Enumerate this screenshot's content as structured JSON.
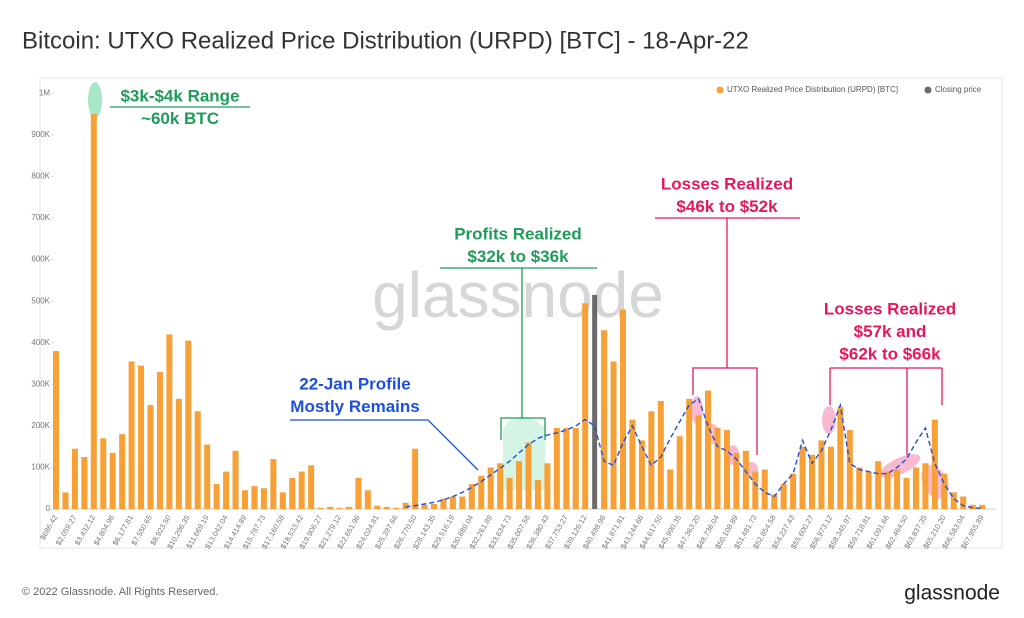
{
  "chart_data": {
    "type": "bar",
    "title": "Bitcoin: UTXO Realized Price Distribution (URPD) [BTC] - 18-Apr-22",
    "watermark": "glassnode",
    "footer": "© 2022 Glassnode. All Rights Reserved.",
    "logo": "glassnode",
    "categories": [
      "$686.42",
      null,
      "$2,059.27",
      null,
      "$3,432.12",
      null,
      "$4,804.96",
      null,
      "$6,177.81",
      null,
      "$7,550.65",
      null,
      "$8,923.50",
      null,
      "$10,296.35",
      null,
      "$11,669.19",
      null,
      "$13,042.04",
      null,
      "$14,414.89",
      null,
      "$15,787.73",
      null,
      "$17,160.58",
      null,
      "$18,533.42",
      null,
      "$19,906.27",
      null,
      "$21,279.12",
      null,
      "$22,651.96",
      null,
      "$24,024.81",
      null,
      "$25,397.66",
      null,
      "$26,770.50",
      null,
      "$28,143.35",
      null,
      "$29,516.19",
      null,
      "$30,889.04",
      null,
      "$32,261.89",
      null,
      "$33,634.73",
      null,
      "$35,007.58",
      null,
      "$36,380.43",
      null,
      "$37,753.27",
      null,
      "$39,126.12",
      null,
      "$40,498.96",
      null,
      "$41,871.81",
      null,
      "$43,244.66",
      null,
      "$44,617.50",
      null,
      "$45,990.35",
      null,
      "$47,363.20",
      null,
      "$48,736.04",
      null,
      "$50,108.89",
      null,
      "$51,481.73",
      null,
      "$52,854.58",
      null,
      "$54,227.43",
      null,
      "$55,600.27",
      null,
      "$56,973.12",
      null,
      "$58,345.97",
      null,
      "$59,718.81",
      null,
      "$61,091.66",
      null,
      "$62,464.50",
      null,
      "$63,837.35",
      null,
      "$65,210.20",
      null,
      "$66,583.04",
      null,
      "$67,955.89"
    ],
    "series": [
      {
        "name": "UTXO Realized Price Distribution (URPD) [BTC]",
        "color": "#f7a035",
        "values": [
          380000,
          40000,
          145000,
          125000,
          950000,
          170000,
          135000,
          180000,
          355000,
          345000,
          250000,
          330000,
          420000,
          265000,
          405000,
          235000,
          155000,
          60000,
          90000,
          140000,
          45000,
          55000,
          50000,
          120000,
          40000,
          75000,
          90000,
          105000,
          3000,
          5000,
          3000,
          5000,
          75000,
          45000,
          8000,
          5000,
          3000,
          15000,
          145000,
          10000,
          12000,
          25000,
          30000,
          30000,
          60000,
          80000,
          100000,
          110000,
          75000,
          115000,
          160000,
          70000,
          110000,
          195000,
          195000,
          195000,
          495000,
          0,
          430000,
          355000,
          480000,
          215000,
          165000,
          235000,
          260000,
          95000,
          175000,
          265000,
          225000,
          285000,
          195000,
          190000,
          135000,
          140000,
          90000,
          95000,
          35000,
          60000,
          85000,
          150000,
          130000,
          165000,
          150000,
          245000,
          190000,
          100000,
          90000,
          115000,
          90000,
          95000,
          75000,
          100000,
          110000,
          215000,
          85000,
          40000,
          30000,
          10000,
          10000
        ]
      },
      {
        "name": "Closing price",
        "color": "#6b6b6b",
        "values": [
          null,
          null,
          null,
          null,
          null,
          null,
          null,
          null,
          null,
          null,
          null,
          null,
          null,
          null,
          null,
          null,
          null,
          null,
          null,
          null,
          null,
          null,
          null,
          null,
          null,
          null,
          null,
          null,
          null,
          null,
          null,
          null,
          null,
          null,
          null,
          null,
          null,
          null,
          null,
          null,
          null,
          null,
          null,
          null,
          null,
          null,
          null,
          null,
          null,
          null,
          null,
          null,
          null,
          null,
          null,
          null,
          null,
          515000,
          null,
          null,
          null,
          null,
          null,
          null,
          null,
          null,
          null,
          null,
          null,
          null,
          null,
          null,
          null,
          null,
          null,
          null,
          null,
          null,
          null,
          null,
          null,
          null,
          null,
          null,
          null,
          null,
          null,
          null,
          null,
          null,
          null,
          null,
          null,
          null,
          null,
          null,
          null,
          null,
          null
        ]
      }
    ],
    "profile_line": {
      "color": "#1f4fe0",
      "values": [
        null,
        null,
        null,
        null,
        null,
        null,
        null,
        null,
        null,
        null,
        null,
        null,
        null,
        null,
        null,
        null,
        null,
        null,
        null,
        null,
        null,
        null,
        null,
        null,
        null,
        null,
        null,
        null,
        null,
        null,
        null,
        null,
        null,
        null,
        null,
        null,
        null,
        5000,
        8000,
        12000,
        16000,
        22000,
        30000,
        40000,
        52000,
        66000,
        82000,
        98000,
        115000,
        135000,
        155000,
        170000,
        178000,
        183000,
        190000,
        200000,
        215000,
        200000,
        115000,
        105000,
        160000,
        200000,
        150000,
        105000,
        125000,
        170000,
        210000,
        250000,
        265000,
        200000,
        150000,
        140000,
        120000,
        90000,
        60000,
        40000,
        30000,
        60000,
        85000,
        165000,
        110000,
        140000,
        190000,
        250000,
        110000,
        95000,
        90000,
        85000,
        85000,
        100000,
        120000,
        160000,
        195000,
        110000,
        60000,
        25000,
        8000,
        3000,
        2000
      ]
    },
    "ylim": [
      0,
      1020000
    ],
    "yticks": [
      0,
      {
        "value": 100000,
        "label": "100K"
      },
      {
        "value": 200000,
        "label": "200K"
      },
      {
        "value": 300000,
        "label": "300K"
      },
      {
        "value": 400000,
        "label": "400K"
      },
      {
        "value": 500000,
        "label": "500K"
      },
      {
        "value": 600000,
        "label": "600K"
      },
      {
        "value": 700000,
        "label": "700K"
      },
      {
        "value": 800000,
        "label": "800K"
      },
      {
        "value": 900000,
        "label": "900K"
      },
      {
        "value": 1000000,
        "label": "1M"
      }
    ],
    "grid": false,
    "legend": "top-right",
    "annotations": [
      {
        "lines": [
          "$3k-$4k Range",
          "~60k BTC"
        ],
        "color": "#1e9c5a"
      },
      {
        "lines": [
          "Profits Realized",
          "$32k to $36k"
        ],
        "color": "#1e9c5a"
      },
      {
        "lines": [
          "Losses Realized",
          "$46k to $52k"
        ],
        "color": "#e8175d"
      },
      {
        "lines": [
          "Losses Realized",
          "$57k and",
          "$62k to $66k"
        ],
        "color": "#e8175d"
      },
      {
        "lines": [
          "22-Jan Profile",
          "Mostly Remains"
        ],
        "color": "#1f4fe0"
      }
    ]
  }
}
